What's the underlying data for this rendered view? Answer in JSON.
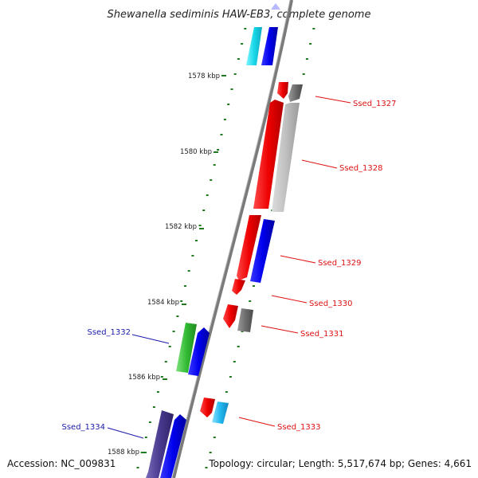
{
  "title": "Shewanella sediminis HAW-EB3, complete genome",
  "accession": "Accession: NC_009831",
  "summary": "Topology: circular; Length: 5,517,674 bp; Genes: 4,661",
  "colors": {
    "backbone": "#7a7a7a",
    "tick": "#1f7a1f",
    "label_red": "#dd1111",
    "label_blue": "#1a1aaa"
  },
  "scale_labels": [
    "1578 kbp",
    "1580 kbp",
    "1582 kbp",
    "1584 kbp",
    "1586 kbp",
    "1588 kbp"
  ],
  "gene_labels": [
    {
      "text": "Ssed_1327",
      "color": "red"
    },
    {
      "text": "Ssed_1328",
      "color": "red"
    },
    {
      "text": "Ssed_1329",
      "color": "red"
    },
    {
      "text": "Ssed_1330",
      "color": "red"
    },
    {
      "text": "Ssed_1331",
      "color": "red"
    },
    {
      "text": "Ssed_1333",
      "color": "red"
    },
    {
      "text": "Ssed_1332",
      "color": "blue"
    },
    {
      "text": "Ssed_1334",
      "color": "blue"
    }
  ]
}
